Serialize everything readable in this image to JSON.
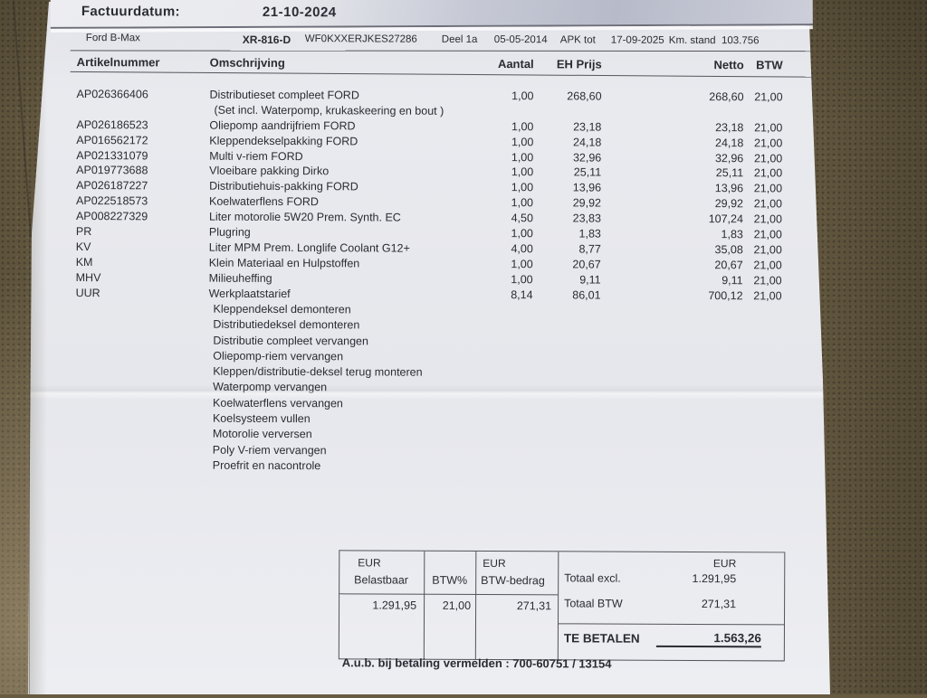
{
  "colors": {
    "fabric_background": "#685c42",
    "paper": "#e9eaee",
    "paper_fold_shadow": "#b7bbc9",
    "ink": "#2b2b33",
    "rule": "#54555c"
  },
  "header": {
    "invoice_date_label": "Factuurdatum:",
    "invoice_date": "21-10-2024",
    "vehicle": {
      "model": "Ford B-Max",
      "license_plate": "XR-816-D",
      "vin": "WF0KXXERJKES27286",
      "part": "Deel 1a",
      "first_registration": "05-05-2014",
      "apk_label": "APK tot",
      "apk_date": "17-09-2025",
      "km_label": "Km. stand",
      "km_value": "103.756"
    }
  },
  "table": {
    "columns": [
      "Artikelnummer",
      "Omschrijving",
      "Aantal",
      "EH Prijs",
      "Netto",
      "BTW"
    ],
    "rows": [
      {
        "article": "AP026366406",
        "description": "Distributieset compleet FORD",
        "description2": "(Set incl. Waterpomp, krukaskeering en bout )",
        "qty": "1,00",
        "unit_price": "268,60",
        "net": "268,60",
        "vat": "21,00"
      },
      {
        "article": "AP026186523",
        "description": "Oliepomp aandrijfriem FORD",
        "qty": "1,00",
        "unit_price": "23,18",
        "net": "23,18",
        "vat": "21,00"
      },
      {
        "article": "AP016562172",
        "description": "Kleppendekselpakking FORD",
        "qty": "1,00",
        "unit_price": "24,18",
        "net": "24,18",
        "vat": "21,00"
      },
      {
        "article": "AP021331079",
        "description": "Multi v-riem FORD",
        "qty": "1,00",
        "unit_price": "32,96",
        "net": "32,96",
        "vat": "21,00"
      },
      {
        "article": "AP019773688",
        "description": "Vloeibare pakking Dirko",
        "qty": "1,00",
        "unit_price": "25,11",
        "net": "25,11",
        "vat": "21,00"
      },
      {
        "article": "AP026187227",
        "description": "Distributiehuis-pakking FORD",
        "qty": "1,00",
        "unit_price": "13,96",
        "net": "13,96",
        "vat": "21,00"
      },
      {
        "article": "AP022518573",
        "description": "Koelwaterflens FORD",
        "qty": "1,00",
        "unit_price": "29,92",
        "net": "29,92",
        "vat": "21,00"
      },
      {
        "article": "AP008227329",
        "description": "Liter motorolie 5W20 Prem. Synth. EC",
        "qty": "4,50",
        "unit_price": "23,83",
        "net": "107,24",
        "vat": "21,00"
      },
      {
        "article": "PR",
        "description": "Plugring",
        "qty": "1,00",
        "unit_price": "1,83",
        "net": "1,83",
        "vat": "21,00"
      },
      {
        "article": "KV",
        "description": "Liter MPM Prem. Longlife Coolant G12+",
        "qty": "4,00",
        "unit_price": "8,77",
        "net": "35,08",
        "vat": "21,00"
      },
      {
        "article": "KM",
        "description": "Klein Materiaal en Hulpstoffen",
        "qty": "1,00",
        "unit_price": "20,67",
        "net": "20,67",
        "vat": "21,00"
      },
      {
        "article": "MHV",
        "description": "Milieuheffing",
        "qty": "1,00",
        "unit_price": "9,11",
        "net": "9,11",
        "vat": "21,00"
      },
      {
        "article": "UUR",
        "description": "Werkplaatstarief",
        "qty": "8,14",
        "unit_price": "86,01",
        "net": "700,12",
        "vat": "21,00"
      }
    ],
    "work_items": [
      "Kleppendeksel demonteren",
      "Distributiedeksel demonteren",
      "Distributie compleet vervangen",
      "Oliepomp-riem vervangen",
      "Kleppen/distributie-deksel terug monteren",
      "Waterpomp vervangen",
      "Koelwaterflens vervangen",
      "Koelsysteem vullen",
      "Motorolie verversen",
      "Poly V-riem vervangen",
      "Proefrit en nacontrole"
    ]
  },
  "totals": {
    "vat_table": {
      "currency_label_1": "EUR",
      "taxable_label": "Belastbaar",
      "vat_pct_label": "BTW%",
      "currency_label_2": "EUR",
      "vat_amount_label": "BTW-bedrag",
      "taxable_value": "1.291,95",
      "vat_pct_value": "21,00",
      "vat_amount_value": "271,31"
    },
    "summary": {
      "currency_label": "EUR",
      "total_excl_label": "Totaal excl.",
      "total_excl_value": "1.291,95",
      "total_vat_label": "Totaal BTW",
      "total_vat_value": "271,31",
      "to_pay_label": "TE BETALEN",
      "to_pay_value": "1.563,26"
    }
  },
  "footer": {
    "note": "A.u.b. bij betaling vermelden : 700-60751 / 13154"
  }
}
